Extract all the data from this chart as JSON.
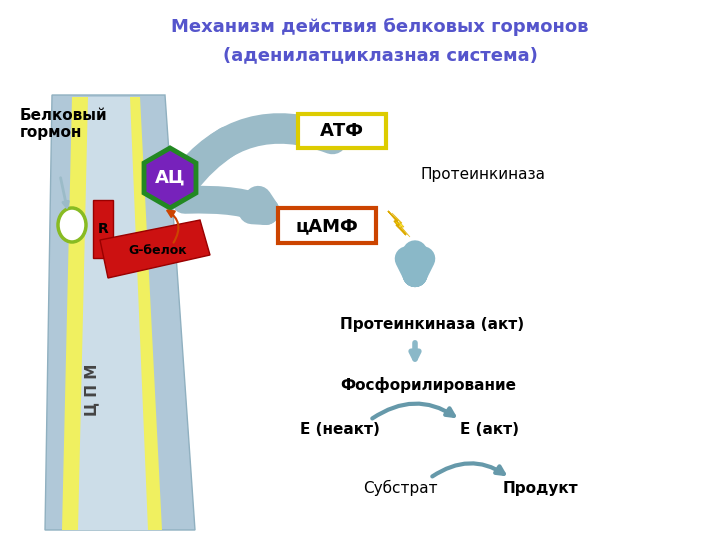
{
  "title_line1": "Механизм действия белковых гормонов",
  "title_line2": "(аденилатциклазная система)",
  "title_color": "#5555cc",
  "title_fontsize": 13,
  "bg_color": "#ffffff",
  "labels": {
    "belkovy": "Белковый\nгормон",
    "ATs": "АЦ",
    "R": "R",
    "G_belok": "G-белок",
    "ATF": "АТФ",
    "cAMF": "цАМФ",
    "proteinkinase": "Протеинкиназа",
    "proteinkinase_act": "Протеинкиназа (акт)",
    "fosfor": "Фосфорилирование",
    "E_neakt": "Е (неакт)",
    "E_akt": "Е (акт)",
    "substrat": "Субстрат",
    "produkt": "Продукт",
    "CPM": "Ц П М"
  },
  "colors": {
    "membrane_blue": "#b0c8d8",
    "membrane_edge": "#90b0c0",
    "yellow_band": "#f0f060",
    "inner_light": "#ccdde8",
    "receptor_fill": "#ffffff",
    "receptor_edge": "#88bb22",
    "ATs_fill": "#7722bb",
    "ATs_edge": "#228822",
    "R_fill": "#cc1111",
    "G_fill": "#cc1111",
    "arrow_gray": "#9bbbc8",
    "arrow_orange": "#cc4400",
    "ATF_edge": "#ddcc00",
    "cAMF_edge": "#cc4400",
    "lightning": "#ffee00",
    "lightning_edge": "#ddaa00",
    "text_dark": "#111111",
    "text_white": "#ffffff",
    "text_purple": "#5555cc",
    "down_arrow": "#8ab8c8",
    "curve_arrow": "#6699aa"
  }
}
